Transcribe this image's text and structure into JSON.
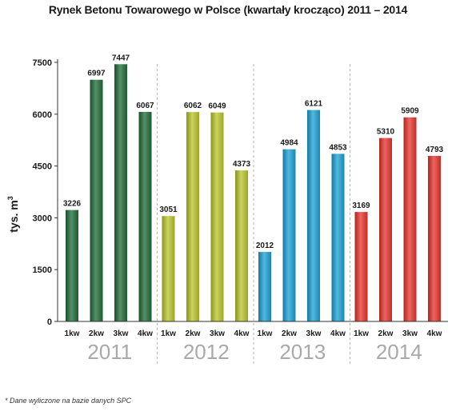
{
  "chart_data": {
    "type": "bar",
    "title": "Rynek Betonu Towarowego w Polsce (kwartały krocząco) 2011 – 2014",
    "ylabel": "tys. m",
    "ylabel_sup": "3",
    "ylim": [
      0,
      7500
    ],
    "yticks": [
      0,
      1500,
      3000,
      4500,
      6000,
      7500
    ],
    "grid": false,
    "groups": [
      {
        "name": "2011",
        "color": "#1f6b36",
        "categories": [
          "1kw",
          "2kw",
          "3kw",
          "4kw"
        ],
        "values": [
          3226,
          6997,
          7447,
          6067
        ]
      },
      {
        "name": "2012",
        "color": "#b9c42a",
        "categories": [
          "1kw",
          "2kw",
          "3kw",
          "4kw"
        ],
        "values": [
          3051,
          6062,
          6049,
          4373
        ]
      },
      {
        "name": "2013",
        "color": "#1aa0d4",
        "categories": [
          "1kw",
          "2kw",
          "3kw",
          "4kw"
        ],
        "values": [
          2012,
          4984,
          6121,
          4853
        ]
      },
      {
        "name": "2014",
        "color": "#e8322b",
        "categories": [
          "1kw",
          "2kw",
          "3kw",
          "4kw"
        ],
        "values": [
          3169,
          5310,
          5909,
          4793
        ]
      }
    ]
  },
  "footnote": "* Dane wyliczone na bazie danych SPC"
}
